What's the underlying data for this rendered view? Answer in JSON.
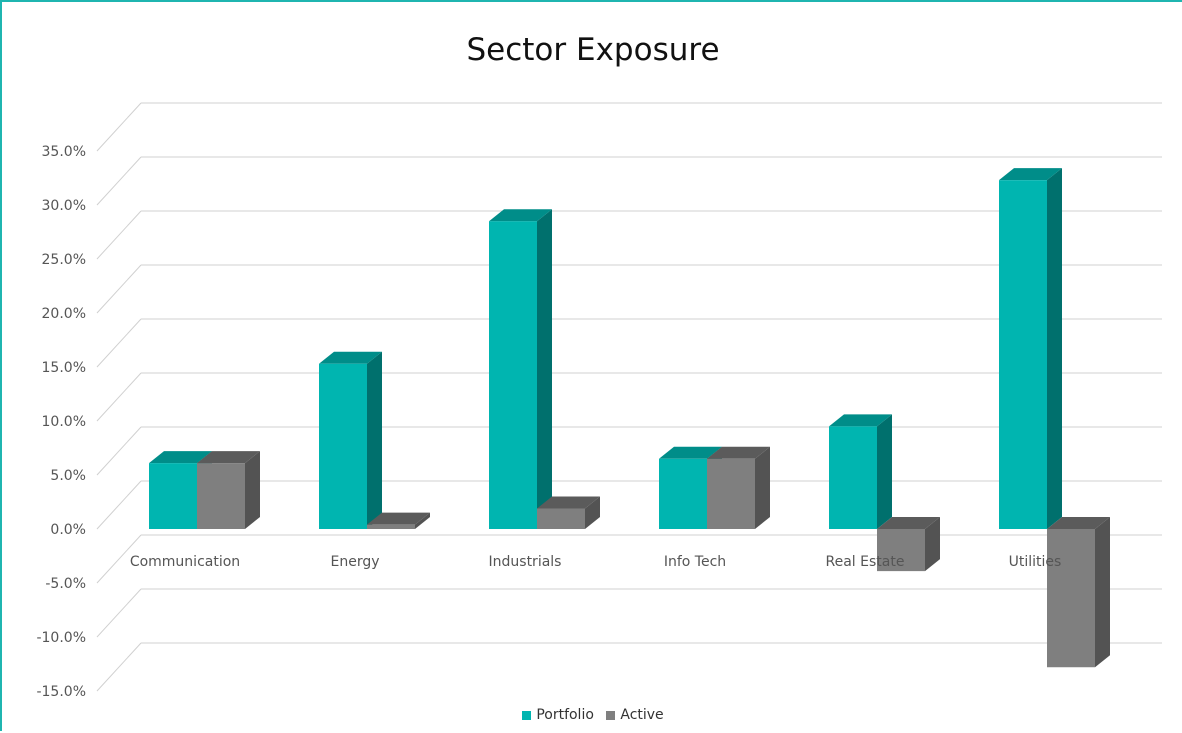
{
  "chart_data": {
    "type": "bar",
    "title": "Sector Exposure",
    "categories": [
      "Communication",
      "Energy",
      "Industrials",
      "Info Tech",
      "Real Estate",
      "Utilities"
    ],
    "series": [
      {
        "name": "Portfolio",
        "values": [
          6.1,
          15.3,
          28.5,
          6.5,
          9.5,
          32.3
        ],
        "color": "#00b5b0"
      },
      {
        "name": "Active",
        "values": [
          6.1,
          0.4,
          1.9,
          6.5,
          -3.9,
          -12.8
        ],
        "color": "#7f7f7f"
      }
    ],
    "ylim": [
      -15,
      35
    ],
    "yticks": [
      "-15.0%",
      "-10.0%",
      "-5.0%",
      "0.0%",
      "5.0%",
      "10.0%",
      "15.0%",
      "20.0%",
      "25.0%",
      "30.0%",
      "35.0%"
    ],
    "grid": true,
    "legend_position": "bottom",
    "style": "3d-clustered-column"
  }
}
